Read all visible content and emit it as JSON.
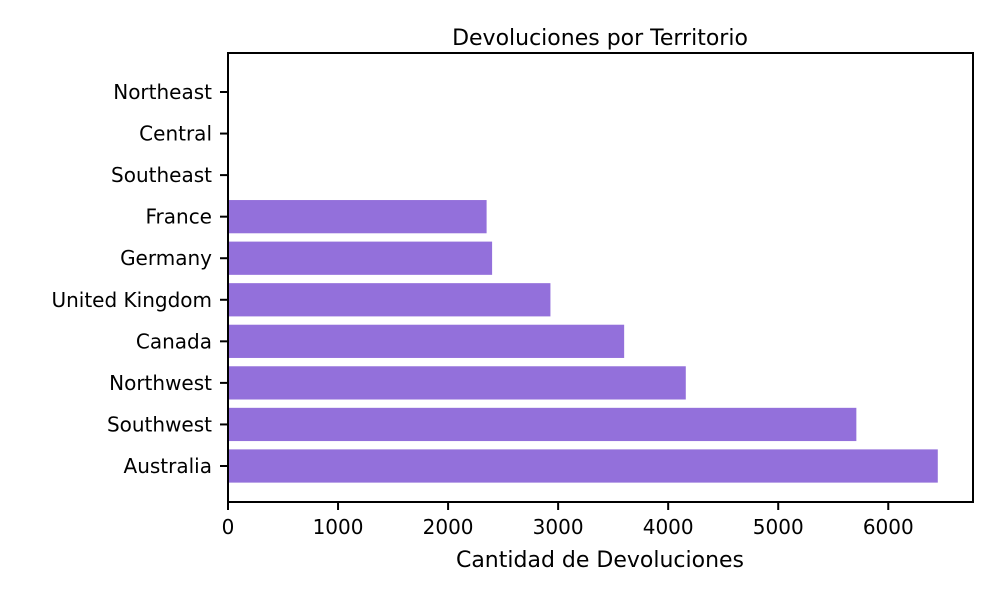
{
  "chart_data": {
    "type": "bar",
    "orientation": "horizontal",
    "title": "Devoluciones por Territorio",
    "xlabel": "Cantidad de Devoluciones",
    "ylabel": "",
    "categories": [
      "Australia",
      "Southwest",
      "Northwest",
      "Canada",
      "United Kingdom",
      "Germany",
      "France",
      "Southeast",
      "Central",
      "Northeast"
    ],
    "values": [
      6450,
      5710,
      4160,
      3600,
      2930,
      2400,
      2350,
      0,
      0,
      0
    ],
    "xlim": [
      0,
      6770
    ],
    "xticks": [
      0,
      1000,
      2000,
      3000,
      4000,
      5000,
      6000
    ],
    "bar_color": "#9370DB",
    "grid": false,
    "legend": false
  }
}
